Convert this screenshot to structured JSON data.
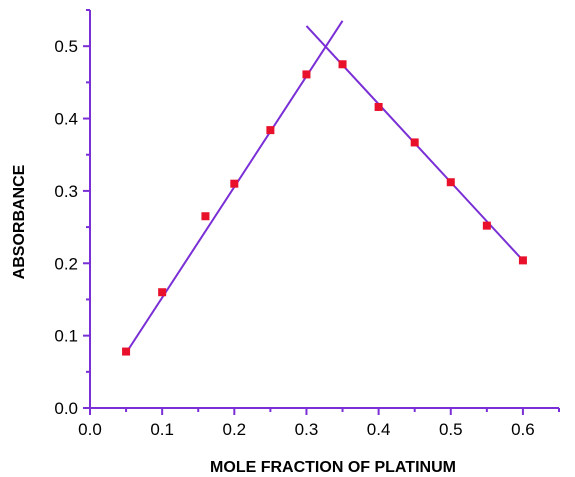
{
  "chart_data": {
    "type": "scatter",
    "title": "",
    "xlabel": "MOLE FRACTION OF PLATINUM",
    "ylabel": "ABSORBANCE",
    "xlim": [
      0.0,
      0.65
    ],
    "ylim": [
      0.0,
      0.55
    ],
    "xticks": [
      "0.0",
      "0.1",
      "0.2",
      "0.3",
      "0.4",
      "0.5",
      "0.6"
    ],
    "yticks": [
      "0.0",
      "0.1",
      "0.2",
      "0.3",
      "0.4",
      "0.5"
    ],
    "grid": false,
    "colors": {
      "points": "#e8102a",
      "lines": "#7a2fd6",
      "axes": "#7a2fd6"
    },
    "series": [
      {
        "x": [
          0.05,
          0.1,
          0.16,
          0.2,
          0.25,
          0.3,
          0.35,
          0.4,
          0.45,
          0.5,
          0.55,
          0.6
        ],
        "values": [
          0.078,
          0.16,
          0.265,
          0.31,
          0.384,
          0.461,
          0.475,
          0.416,
          0.367,
          0.312,
          0.252,
          0.204
        ]
      }
    ],
    "fit_lines": [
      {
        "x": [
          0.05,
          0.35
        ],
        "y": [
          0.076,
          0.535
        ]
      },
      {
        "x": [
          0.3,
          0.6
        ],
        "y": [
          0.528,
          0.204
        ]
      }
    ]
  }
}
